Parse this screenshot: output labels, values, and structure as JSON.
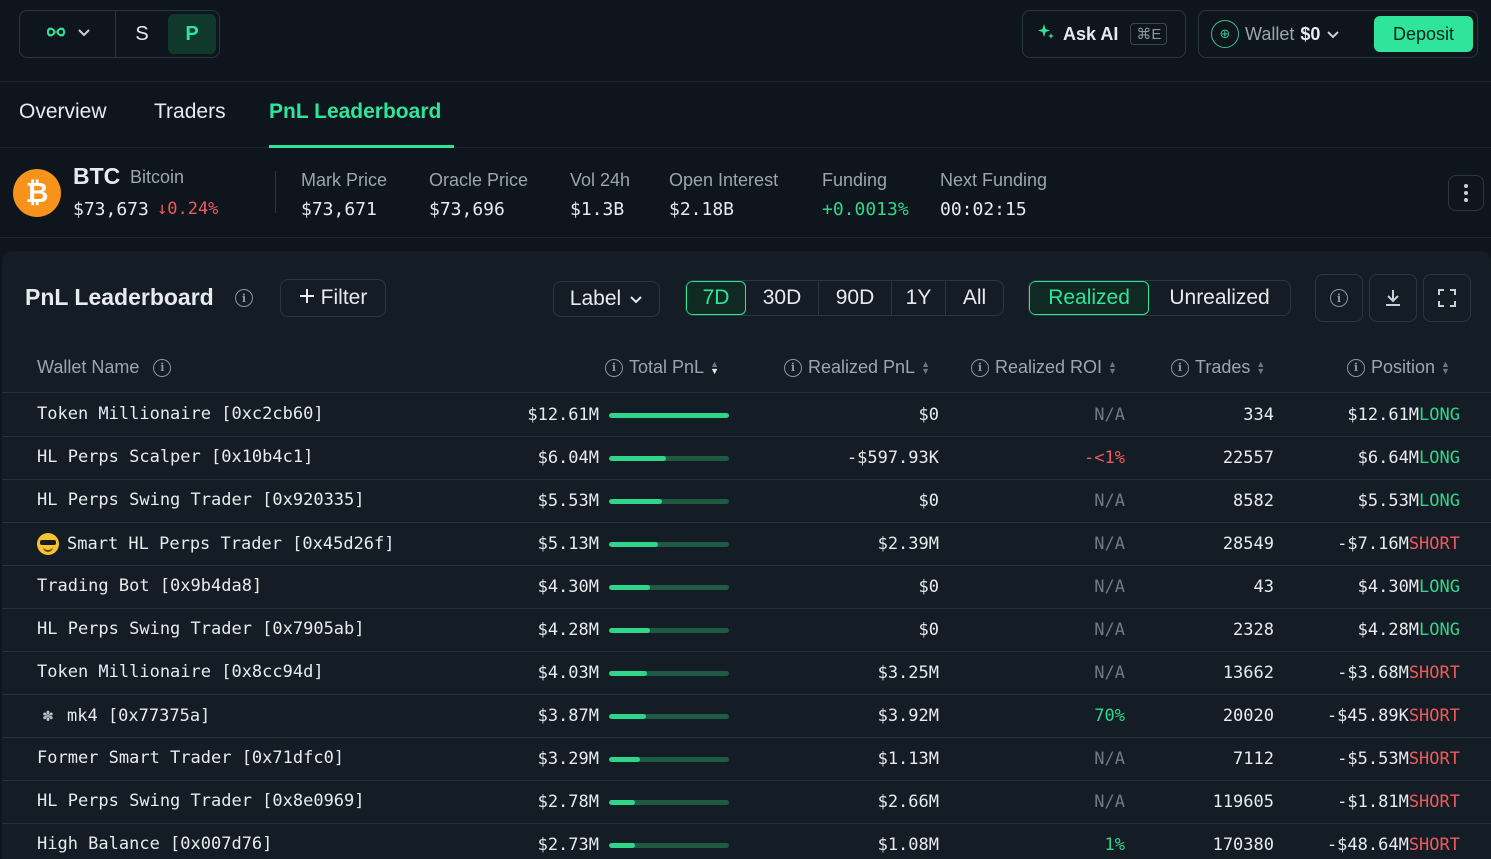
{
  "topbar": {
    "mode_s": "S",
    "mode_p": "P",
    "ask_ai": "Ask AI",
    "ask_ai_shortcut": "⌘E",
    "wallet_label": "Wallet",
    "wallet_amount": "$0",
    "deposit": "Deposit"
  },
  "tabs": [
    {
      "label": "Overview"
    },
    {
      "label": "Traders"
    },
    {
      "label": "PnL Leaderboard"
    }
  ],
  "ticker": {
    "symbol": "BTC",
    "name": "Bitcoin",
    "price": "$73,673",
    "change": "↓0.24%",
    "stats": [
      {
        "label": "Mark Price",
        "value": "$73,671"
      },
      {
        "label": "Oracle Price",
        "value": "$73,696"
      },
      {
        "label": "Vol 24h",
        "value": "$1.3B"
      },
      {
        "label": "Open Interest",
        "value": "$2.18B"
      },
      {
        "label": "Funding",
        "value": "+0.0013%"
      },
      {
        "label": "Next Funding",
        "value": "00:02:15"
      }
    ]
  },
  "panel": {
    "title": "PnL Leaderboard",
    "filter": "Filter",
    "label_dropdown": "Label",
    "periods": [
      "7D",
      "30D",
      "90D",
      "1Y",
      "All"
    ],
    "active_period": "7D",
    "modes": [
      "Realized",
      "Unrealized"
    ],
    "active_mode": "Realized"
  },
  "columns": {
    "wallet": "Wallet Name",
    "total_pnl": "Total PnL",
    "realized_pnl": "Realized PnL",
    "realized_roi": "Realized ROI",
    "trades": "Trades",
    "position": "Position"
  },
  "colors": {
    "accent": "#2fe59b",
    "negative": "#f05a5a",
    "positive": "#2fd68a",
    "background": "#0e151c",
    "panel": "#141d25"
  },
  "rows": [
    {
      "emoji": "",
      "name": "Token Millionaire [0xc2cb60]",
      "total": "$12.61M",
      "bar": 1.0,
      "realized": "$0",
      "roi": "N/A",
      "roi_class": "",
      "trades": "334",
      "pos_value": "$12.61M",
      "side": "LONG"
    },
    {
      "emoji": "",
      "name": "HL Perps Scalper [0x10b4c1]",
      "total": "$6.04M",
      "bar": 0.479,
      "realized": "-$597.93K",
      "roi": "-<1%",
      "roi_class": "neg",
      "trades": "22557",
      "pos_value": "$6.64M",
      "side": "LONG"
    },
    {
      "emoji": "",
      "name": "HL Perps Swing Trader [0x920335]",
      "total": "$5.53M",
      "bar": 0.439,
      "realized": "$0",
      "roi": "N/A",
      "roi_class": "",
      "trades": "8582",
      "pos_value": "$5.53M",
      "side": "LONG"
    },
    {
      "emoji": "cool",
      "name": "Smart HL Perps Trader [0x45d26f]",
      "total": "$5.13M",
      "bar": 0.407,
      "realized": "$2.39M",
      "roi": "N/A",
      "roi_class": "",
      "trades": "28549",
      "pos_value": "-$7.16M",
      "side": "SHORT"
    },
    {
      "emoji": "",
      "name": "Trading Bot [0x9b4da8]",
      "total": "$4.30M",
      "bar": 0.341,
      "realized": "$0",
      "roi": "N/A",
      "roi_class": "",
      "trades": "43",
      "pos_value": "$4.30M",
      "side": "LONG"
    },
    {
      "emoji": "",
      "name": "HL Perps Swing Trader [0x7905ab]",
      "total": "$4.28M",
      "bar": 0.339,
      "realized": "$0",
      "roi": "N/A",
      "roi_class": "",
      "trades": "2328",
      "pos_value": "$4.28M",
      "side": "LONG"
    },
    {
      "emoji": "",
      "name": "Token Millionaire [0x8cc94d]",
      "total": "$4.03M",
      "bar": 0.32,
      "realized": "$3.25M",
      "roi": "N/A",
      "roi_class": "",
      "trades": "13662",
      "pos_value": "-$3.68M",
      "side": "SHORT"
    },
    {
      "emoji": "brain",
      "name": "mk4 [0x77375a]",
      "total": "$3.87M",
      "bar": 0.307,
      "realized": "$3.92M",
      "roi": "70%",
      "roi_class": "pos",
      "trades": "20020",
      "pos_value": "-$45.89K",
      "side": "SHORT"
    },
    {
      "emoji": "",
      "name": "Former Smart Trader [0x71dfc0]",
      "total": "$3.29M",
      "bar": 0.261,
      "realized": "$1.13M",
      "roi": "N/A",
      "roi_class": "",
      "trades": "7112",
      "pos_value": "-$5.53M",
      "side": "SHORT"
    },
    {
      "emoji": "",
      "name": "HL Perps Swing Trader [0x8e0969]",
      "total": "$2.78M",
      "bar": 0.22,
      "realized": "$2.66M",
      "roi": "N/A",
      "roi_class": "",
      "trades": "119605",
      "pos_value": "-$1.81M",
      "side": "SHORT"
    },
    {
      "emoji": "",
      "name": "High Balance [0x007d76]",
      "total": "$2.73M",
      "bar": 0.216,
      "realized": "$1.08M",
      "roi": "1%",
      "roi_class": "pos",
      "trades": "170380",
      "pos_value": "-$48.64M",
      "side": "SHORT"
    }
  ]
}
